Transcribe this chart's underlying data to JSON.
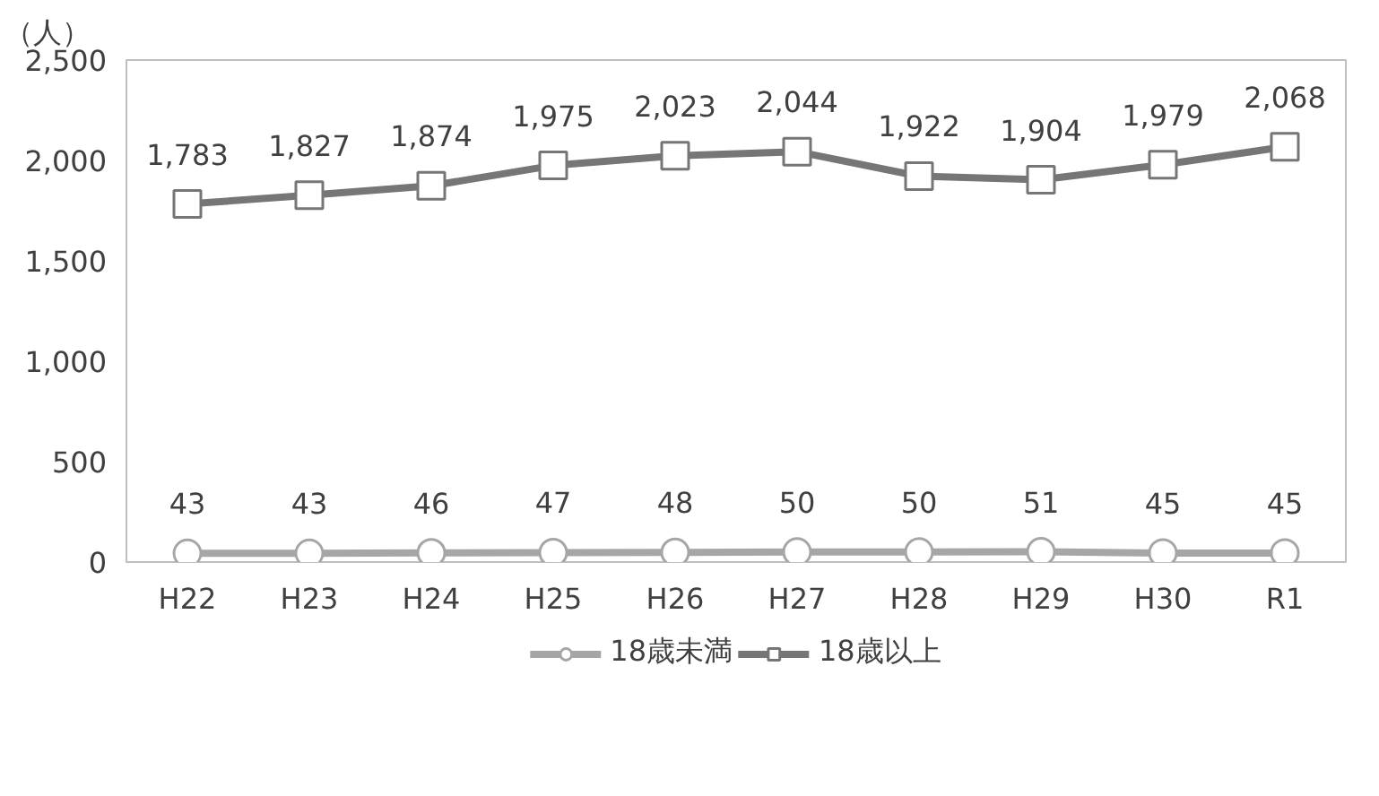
{
  "chart_data": {
    "type": "line",
    "ylabel": "（人）",
    "categories": [
      "H22",
      "H23",
      "H24",
      "H25",
      "H26",
      "H27",
      "H28",
      "H29",
      "H30",
      "R1"
    ],
    "series": [
      {
        "name": "18歳未満",
        "color": "#a6a6a6",
        "marker": "circle",
        "values": [
          43,
          43,
          46,
          47,
          48,
          50,
          50,
          51,
          45,
          45
        ],
        "value_labels": [
          "43",
          "43",
          "46",
          "47",
          "48",
          "50",
          "50",
          "51",
          "45",
          "45"
        ]
      },
      {
        "name": "18歳以上",
        "color": "#767676",
        "marker": "square",
        "values": [
          1783,
          1827,
          1874,
          1975,
          2023,
          2044,
          1922,
          1904,
          1979,
          2068
        ],
        "value_labels": [
          "1,783",
          "1,827",
          "1,874",
          "1,975",
          "2,023",
          "2,044",
          "1,922",
          "1,904",
          "1,979",
          "2,068"
        ]
      }
    ],
    "ylim": [
      0,
      2500
    ],
    "yticks": [
      {
        "value": 0,
        "label": "0"
      },
      {
        "value": 500,
        "label": "500"
      },
      {
        "value": 1000,
        "label": "1,000"
      },
      {
        "value": 1500,
        "label": "1,500"
      },
      {
        "value": 2000,
        "label": "2,000"
      },
      {
        "value": 2500,
        "label": "2,500"
      }
    ],
    "grid": false,
    "legend": "bottom"
  }
}
